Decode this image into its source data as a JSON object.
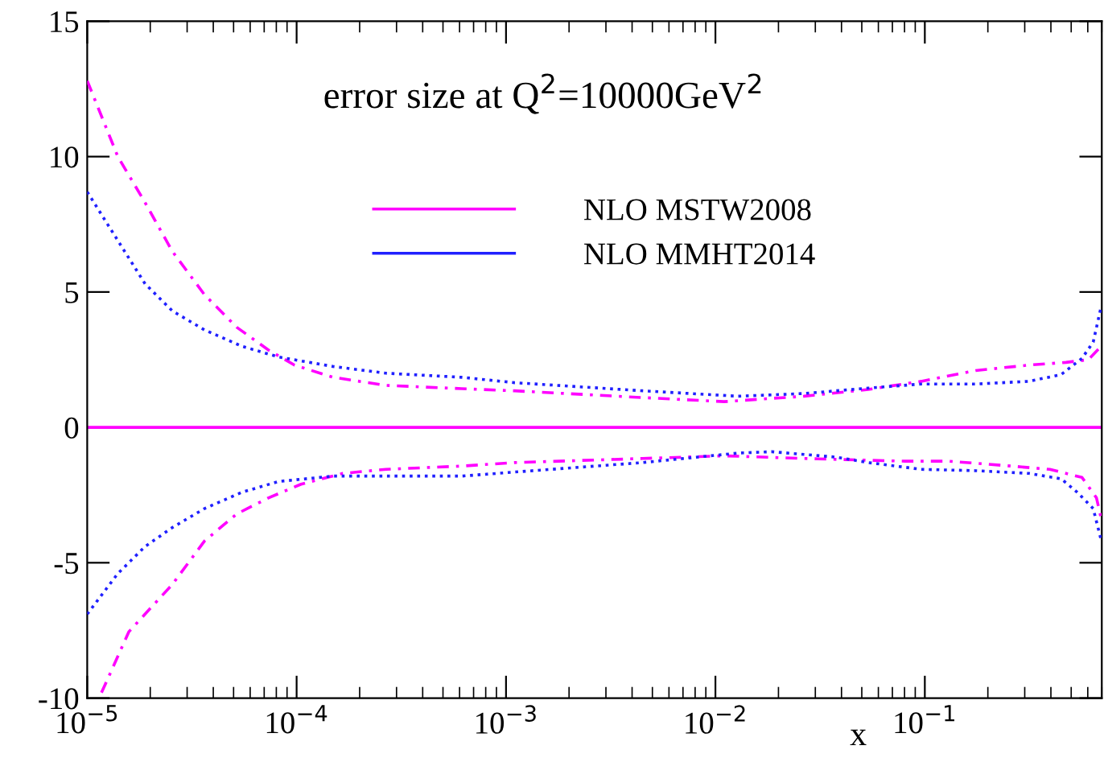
{
  "chart_data": {
    "type": "line",
    "title": "error size at Q$^{2}$=10000GeV$^{2}$",
    "xlabel": "x",
    "log": "x",
    "xlim": [
      1e-05,
      0.7
    ],
    "ylim": [
      -10,
      15
    ],
    "xticks": [
      {
        "value": 1e-05,
        "label": "10$^{−5}$"
      },
      {
        "value": 0.0001,
        "label": "10$^{−4}$"
      },
      {
        "value": 0.001,
        "label": "10$^{−3}$"
      },
      {
        "value": 0.01,
        "label": "10$^{−2}$"
      },
      {
        "value": 0.1,
        "label": "10$^{−1}$"
      }
    ],
    "yticks": [
      -10,
      -5,
      0,
      5,
      10,
      15
    ],
    "grid": false,
    "legend": "top",
    "marker": "none",
    "ref_lines": [
      {
        "axis": "y",
        "value": 0,
        "color": "#ff00ff",
        "line_style": "solid"
      }
    ],
    "series": [
      {
        "name": "NLO MSTW2008",
        "color": "#ff00ff",
        "line_style": "dashed",
        "x": [
          1e-05,
          1.4e-05,
          1.89e-05,
          2.55e-05,
          3.63e-05,
          5.17e-05,
          7.36e-05,
          9.77e-05,
          0.000149,
          0.000267,
          0.000614,
          0.0011,
          0.0045,
          0.011,
          0.0265,
          0.0537,
          0.096,
          0.175,
          0.314,
          0.472,
          0.604,
          0.697
        ],
        "values": [
          12.8,
          10.0,
          8.3,
          6.5,
          4.9,
          3.7,
          2.85,
          2.3,
          1.85,
          1.55,
          1.43,
          1.35,
          1.1,
          0.95,
          1.15,
          1.4,
          1.7,
          2.1,
          2.3,
          2.4,
          2.5,
          3.0
        ]
      },
      {
        "color": "#ff00ff",
        "line_style": "dashed",
        "x": [
          1.17e-05,
          1.58e-05,
          2.55e-05,
          3.63e-05,
          5.17e-05,
          7.36e-05,
          0.000105,
          0.000166,
          0.000267,
          0.000614,
          0.0011,
          0.0045,
          0.011,
          0.0265,
          0.0805,
          0.13,
          0.233,
          0.395,
          0.563,
          0.66,
          0.697
        ],
        "values": [
          -9.8,
          -7.55,
          -5.8,
          -4.2,
          -3.2,
          -2.6,
          -2.1,
          -1.7,
          -1.55,
          -1.43,
          -1.3,
          -1.15,
          -1.05,
          -1.15,
          -1.25,
          -1.25,
          -1.4,
          -1.55,
          -1.85,
          -2.6,
          -3.4
        ]
      },
      {
        "name": "NLO MMHT2014",
        "color": "#2020ff",
        "line_style": "dotted",
        "x": [
          1e-05,
          1.4e-05,
          1.89e-05,
          2.55e-05,
          3.63e-05,
          5.46e-05,
          8.19e-05,
          0.000149,
          0.000267,
          0.000614,
          0.0011,
          0.0045,
          0.0128,
          0.0265,
          0.0537,
          0.096,
          0.175,
          0.314,
          0.448,
          0.563,
          0.637,
          0.697
        ],
        "values": [
          8.7,
          6.9,
          5.3,
          4.3,
          3.6,
          3.0,
          2.6,
          2.25,
          2.0,
          1.85,
          1.65,
          1.35,
          1.15,
          1.25,
          1.45,
          1.6,
          1.6,
          1.7,
          1.95,
          2.55,
          3.15,
          4.5
        ]
      },
      {
        "color": "#2020ff",
        "line_style": "dotted",
        "x": [
          1e-05,
          1.4e-05,
          1.89e-05,
          2.55e-05,
          3.63e-05,
          5.46e-05,
          8.19e-05,
          0.000149,
          0.000267,
          0.000614,
          0.0011,
          0.0045,
          0.0128,
          0.0186,
          0.0377,
          0.0537,
          0.096,
          0.175,
          0.314,
          0.448,
          0.535,
          0.637,
          0.697
        ],
        "values": [
          -6.9,
          -5.4,
          -4.4,
          -3.7,
          -3.0,
          -2.4,
          -2.0,
          -1.8,
          -1.8,
          -1.8,
          -1.65,
          -1.3,
          -0.95,
          -0.9,
          -1.1,
          -1.3,
          -1.55,
          -1.6,
          -1.7,
          -1.9,
          -2.4,
          -3.0,
          -4.2
        ]
      }
    ]
  }
}
